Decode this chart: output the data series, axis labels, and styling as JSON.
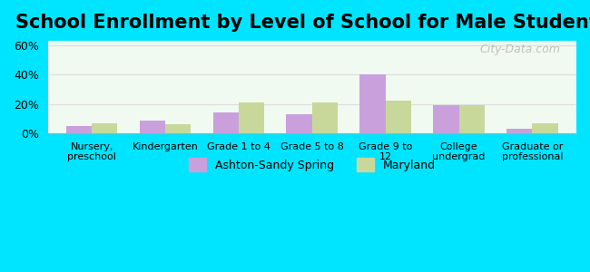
{
  "title": "School Enrollment by Level of School for Male Students",
  "categories": [
    "Nursery,\npreschool",
    "Kindergarten",
    "Grade 1 to 4",
    "Grade 5 to 8",
    "Grade 9 to\n12",
    "College\nundergrad",
    "Graduate or\nprofessional"
  ],
  "ashton_values": [
    5,
    9,
    14,
    13,
    40,
    19,
    3
  ],
  "maryland_values": [
    7,
    6,
    21,
    21,
    22,
    19,
    7
  ],
  "ashton_color": "#c9a0dc",
  "maryland_color": "#c8d89a",
  "background_outer": "#00e5ff",
  "background_inner": "#f0faf0",
  "yticks": [
    0,
    20,
    40,
    60
  ],
  "ylim": [
    0,
    63
  ],
  "legend_labels": [
    "Ashton-Sandy Spring",
    "Maryland"
  ],
  "watermark": "City-Data.com",
  "title_fontsize": 15,
  "bar_width": 0.35,
  "grid_color": "#dddddd"
}
